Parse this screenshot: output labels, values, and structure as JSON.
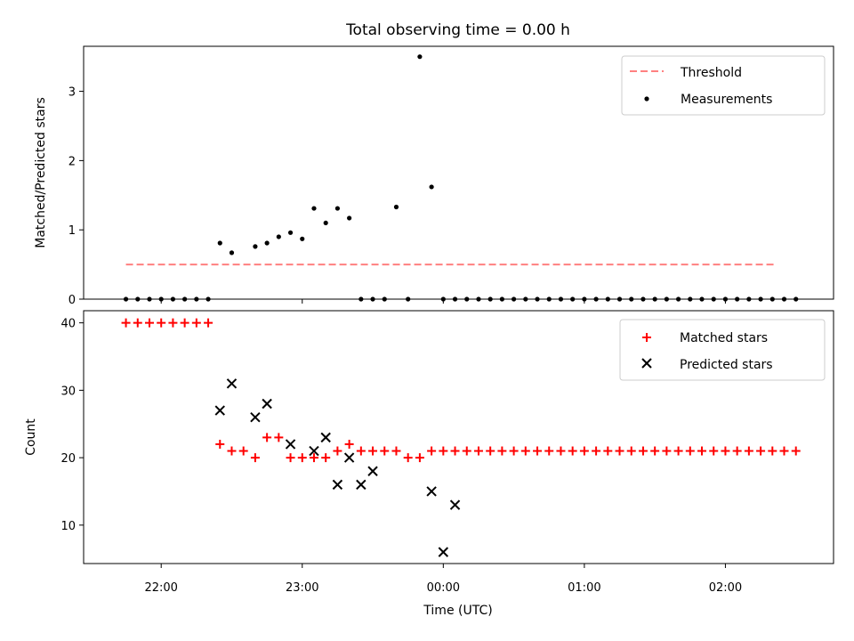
{
  "chart_data": [
    {
      "type": "line",
      "title": "Total observing time = 0.00 h",
      "xlabel": "",
      "ylabel": "Matched/Predicted stars",
      "ylim": [
        0,
        3.65
      ],
      "xlim": [
        "21:27",
        "02:46"
      ],
      "yticks": [
        0,
        1,
        2,
        3
      ],
      "legend_position": "top-right",
      "threshold": {
        "name": "Threshold",
        "value": 0.5,
        "x_start": "21:45",
        "x_end": "02:22",
        "color": "#ff8080",
        "style": "dashed"
      },
      "series": [
        {
          "name": "Measurements",
          "color": "#000000",
          "x": [
            "21:45",
            "21:50",
            "21:55",
            "22:00",
            "22:05",
            "22:10",
            "22:15",
            "22:20",
            "22:25",
            "22:30",
            "22:40",
            "22:45",
            "22:50",
            "22:55",
            "23:00",
            "23:05",
            "23:10",
            "23:15",
            "23:20",
            "23:25",
            "23:30",
            "23:35",
            "23:40",
            "23:45",
            "23:50",
            "23:55",
            "00:00",
            "00:05",
            "00:10",
            "00:15",
            "00:20",
            "00:25",
            "00:30",
            "00:35",
            "00:40",
            "00:45",
            "00:50",
            "00:55",
            "01:00",
            "01:05",
            "01:10",
            "01:15",
            "01:20",
            "01:25",
            "01:30",
            "01:35",
            "01:40",
            "01:45",
            "01:50",
            "01:55",
            "02:00",
            "02:05",
            "02:10",
            "02:15",
            "02:20",
            "02:25",
            "02:30"
          ],
          "y": [
            0,
            0,
            0,
            0,
            0,
            0,
            0,
            0,
            0.81,
            0.67,
            0.76,
            0.81,
            0.9,
            0.96,
            0.87,
            1.31,
            1.1,
            1.31,
            1.17,
            0,
            0,
            0,
            1.33,
            0,
            3.5,
            1.62,
            0,
            0,
            0,
            0,
            0,
            0,
            0,
            0,
            0,
            0,
            0,
            0,
            0,
            0,
            0,
            0,
            0,
            0,
            0,
            0,
            0,
            0,
            0,
            0,
            0,
            0,
            0,
            0,
            0,
            0,
            0
          ]
        }
      ]
    },
    {
      "type": "scatter",
      "title": "",
      "xlabel": "Time (UTC)",
      "ylabel": "Count",
      "ylim": [
        4.3,
        41.8
      ],
      "xlim": [
        "21:27",
        "02:46"
      ],
      "yticks": [
        10,
        20,
        30,
        40
      ],
      "xticks": [
        "22:00",
        "23:00",
        "00:00",
        "01:00",
        "02:00"
      ],
      "legend_position": "top-right",
      "series": [
        {
          "name": "Matched stars",
          "marker": "plus",
          "color": "#ff0000",
          "x": [
            "21:45",
            "21:50",
            "21:55",
            "22:00",
            "22:05",
            "22:10",
            "22:15",
            "22:20",
            "22:25",
            "22:30",
            "22:35",
            "22:40",
            "22:45",
            "22:50",
            "22:55",
            "23:00",
            "23:05",
            "23:10",
            "23:15",
            "23:20",
            "23:25",
            "23:30",
            "23:35",
            "23:40",
            "23:45",
            "23:50",
            "23:55",
            "00:00",
            "00:05",
            "00:10",
            "00:15",
            "00:20",
            "00:25",
            "00:30",
            "00:35",
            "00:40",
            "00:45",
            "00:50",
            "00:55",
            "01:00",
            "01:05",
            "01:10",
            "01:15",
            "01:20",
            "01:25",
            "01:30",
            "01:35",
            "01:40",
            "01:45",
            "01:50",
            "01:55",
            "02:00",
            "02:05",
            "02:10",
            "02:15",
            "02:20",
            "02:25",
            "02:30"
          ],
          "y": [
            40,
            40,
            40,
            40,
            40,
            40,
            40,
            40,
            22,
            21,
            21,
            20,
            23,
            23,
            20,
            20,
            20,
            20,
            21,
            22,
            21,
            21,
            21,
            21,
            20,
            20,
            21,
            21,
            21,
            21,
            21,
            21,
            21,
            21,
            21,
            21,
            21,
            21,
            21,
            21,
            21,
            21,
            21,
            21,
            21,
            21,
            21,
            21,
            21,
            21,
            21,
            21,
            21,
            21,
            21,
            21,
            21,
            21
          ]
        },
        {
          "name": "Predicted stars",
          "marker": "x",
          "color": "#000000",
          "x": [
            "22:25",
            "22:30",
            "22:40",
            "22:45",
            "22:55",
            "23:05",
            "23:10",
            "23:15",
            "23:20",
            "23:25",
            "23:30",
            "23:55",
            "00:00",
            "00:05"
          ],
          "y": [
            27,
            31,
            26,
            28,
            22,
            21,
            23,
            16,
            20,
            16,
            18,
            15,
            6,
            13
          ]
        }
      ]
    }
  ]
}
